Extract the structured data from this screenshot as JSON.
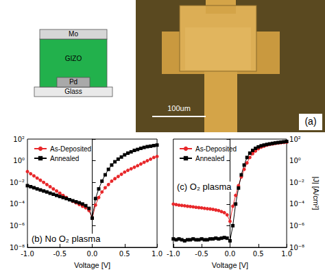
{
  "schematic": {
    "layers": [
      {
        "label": "Mo",
        "color": "#d6d6d6"
      },
      {
        "label": "GIZO",
        "color": "#22b14c"
      },
      {
        "label": "Pd",
        "color": "#a9a9a9"
      },
      {
        "label": "Glass",
        "color": "#e9e9e9"
      }
    ]
  },
  "micrograph": {
    "scale_bar": "100um",
    "panel": "(a)"
  },
  "chart_data": [
    {
      "type": "line",
      "annotation": "(b) No O₂ plasma",
      "xlabel": "Voltage [V]",
      "x": [
        -1.0,
        -0.95,
        -0.9,
        -0.85,
        -0.8,
        -0.75,
        -0.7,
        -0.65,
        -0.6,
        -0.55,
        -0.5,
        -0.45,
        -0.4,
        -0.35,
        -0.3,
        -0.25,
        -0.2,
        -0.15,
        -0.1,
        -0.05,
        0.0,
        0.05,
        0.1,
        0.15,
        0.2,
        0.25,
        0.3,
        0.35,
        0.4,
        0.45,
        0.5,
        0.55,
        0.6,
        0.65,
        0.7,
        0.75,
        0.8,
        0.85,
        0.9,
        0.95,
        1.0
      ],
      "series": [
        {
          "name": "As-Deposited",
          "color": "#e8282b",
          "marker": "circle",
          "line_style": "solid",
          "values": [
            0.1,
            0.063,
            0.04,
            0.025,
            0.016,
            0.01,
            0.0063,
            0.004,
            0.0025,
            0.0016,
            0.001,
            0.00063,
            0.0004,
            0.00025,
            0.00018,
            0.00013,
            9e-05,
            6.3e-05,
            4.5e-05,
            2.5e-05,
            5e-06,
            8e-05,
            0.0004,
            0.0013,
            0.0032,
            0.0063,
            0.013,
            0.022,
            0.035,
            0.056,
            0.089,
            0.13,
            0.18,
            0.25,
            0.35,
            0.5,
            0.71,
            1,
            1.4,
            2,
            2.5
          ]
        },
        {
          "name": "Annealed",
          "color": "#000000",
          "marker": "square",
          "line_style": "solid",
          "values": [
            0.005,
            0.004,
            0.0032,
            0.0025,
            0.002,
            0.0016,
            0.0013,
            0.001,
            0.0008,
            0.00063,
            0.0005,
            0.0004,
            0.00032,
            0.00025,
            0.0002,
            0.00016,
            0.00013,
            0.0001,
            7e-05,
            4e-05,
            5e-06,
            0.00032,
            0.0025,
            0.013,
            0.05,
            0.16,
            0.4,
            0.8,
            1.4,
            2.2,
            3.5,
            5,
            6.6,
            9,
            11,
            14,
            17,
            20,
            22,
            25,
            28
          ]
        }
      ],
      "xlim": [
        -1,
        1
      ],
      "xticks": [
        {
          "value": -1,
          "label": "-1.0"
        },
        -0.5,
        {
          "value": 0,
          "label": "0.0"
        },
        0.5,
        {
          "value": 1,
          "label": "1.0"
        }
      ],
      "ylim": [
        1e-08,
        100
      ],
      "yticks": [
        {
          "value": 1e-08,
          "label": "10⁻⁸"
        },
        {
          "value": 1e-06,
          "label": "10⁻⁶"
        },
        {
          "value": 0.0001,
          "label": "10⁻⁴"
        },
        {
          "value": 0.01,
          "label": "10⁻²"
        },
        {
          "value": 1,
          "label": "10⁰"
        },
        {
          "value": 100,
          "label": "10²"
        }
      ],
      "log": "y",
      "grid": false,
      "legend": "upper left"
    },
    {
      "type": "line",
      "annotation": "(c) O₂ plasma",
      "xlabel": "Voltage [V]",
      "ylabel": "|J| [A/cm²]",
      "x": [
        -1.0,
        -0.95,
        -0.9,
        -0.85,
        -0.8,
        -0.75,
        -0.7,
        -0.65,
        -0.6,
        -0.55,
        -0.5,
        -0.45,
        -0.4,
        -0.35,
        -0.3,
        -0.25,
        -0.2,
        -0.15,
        -0.1,
        -0.05,
        0.0,
        0.05,
        0.1,
        0.15,
        0.2,
        0.25,
        0.3,
        0.35,
        0.4,
        0.45,
        0.5,
        0.55,
        0.6,
        0.65,
        0.7,
        0.75,
        0.8,
        0.85,
        0.9,
        0.95,
        1.0
      ],
      "series": [
        {
          "name": "As-Deposited",
          "color": "#e8282b",
          "marker": "circle",
          "line_style": "solid",
          "values": [
            0.0001,
            8.9e-05,
            7.9e-05,
            7.4e-05,
            6.9e-05,
            6.3e-05,
            5.9e-05,
            5.5e-05,
            5e-05,
            4.7e-05,
            4.4e-05,
            4e-05,
            3.7e-05,
            3.5e-05,
            3.2e-05,
            2.8e-05,
            2.5e-05,
            2e-05,
            1.6e-05,
            1e-05,
            2.5e-06,
            6.3e-05,
            0.00063,
            0.005,
            0.032,
            0.16,
            0.63,
            2,
            4.5,
            7.9,
            13,
            18,
            22,
            28,
            32,
            35,
            40,
            43,
            46,
            49,
            52
          ]
        },
        {
          "name": "Annealed",
          "color": "#000000",
          "marker": "square",
          "line_style": "solid",
          "values": [
            6e-08,
            5e-08,
            6e-08,
            5e-08,
            4e-08,
            5e-08,
            5e-08,
            6e-08,
            5e-08,
            5e-08,
            6e-08,
            5e-08,
            5e-08,
            6e-08,
            6e-08,
            7e-08,
            6e-08,
            7e-08,
            8e-08,
            7e-08,
            4e-08,
            1e-06,
            0.0001,
            0.003,
            0.05,
            0.4,
            2,
            5,
            9,
            14,
            19,
            24,
            28,
            32,
            36,
            40,
            44,
            48,
            52,
            56,
            60
          ]
        }
      ],
      "xlim": [
        -1,
        1
      ],
      "xticks": [
        {
          "value": -1,
          "label": "-1.0"
        },
        -0.5,
        {
          "value": 0,
          "label": "0.0"
        },
        0.5,
        {
          "value": 1,
          "label": "1.0"
        }
      ],
      "ylim": [
        1e-08,
        100
      ],
      "yticks": [
        {
          "value": 1e-08,
          "label": "10⁻⁸"
        },
        {
          "value": 1e-06,
          "label": "10⁻⁶"
        },
        {
          "value": 0.0001,
          "label": "10⁻⁴"
        },
        {
          "value": 0.01,
          "label": "10⁻²"
        },
        {
          "value": 1,
          "label": "10⁰"
        },
        {
          "value": 100,
          "label": "10²"
        }
      ],
      "log": "y",
      "grid": false,
      "legend": "upper left"
    }
  ]
}
